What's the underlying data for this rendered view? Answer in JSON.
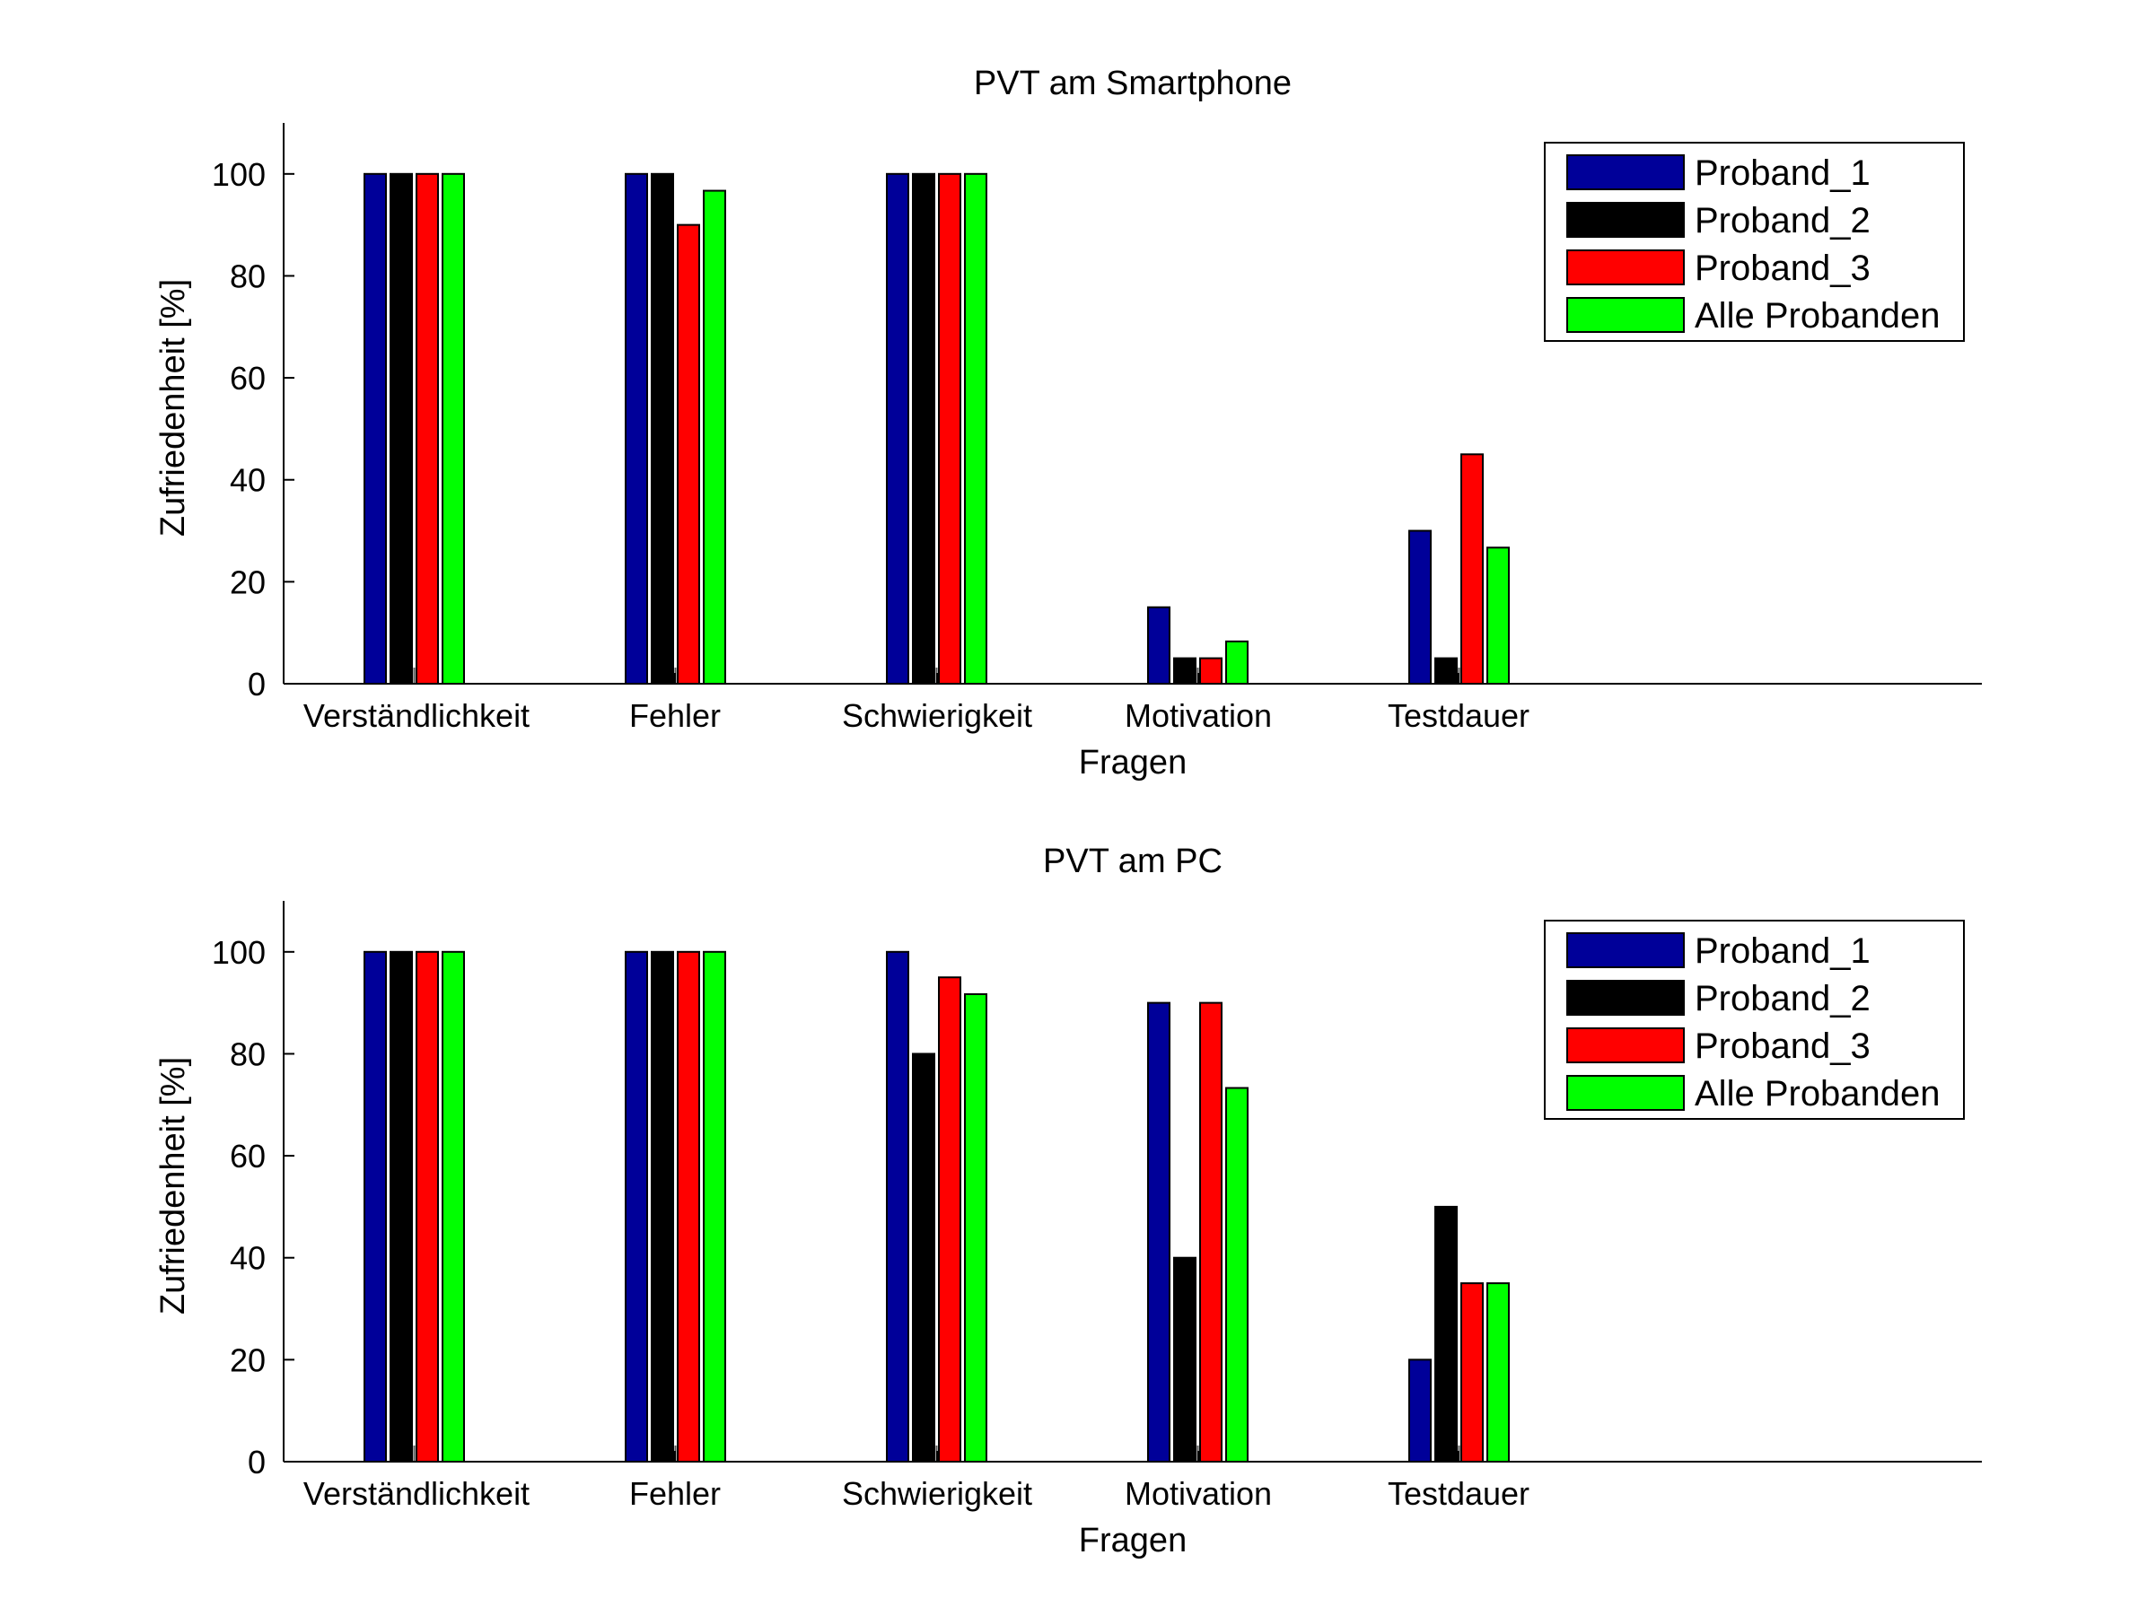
{
  "chart_data": [
    {
      "type": "bar",
      "title": "PVT am Smartphone",
      "xlabel": "Fragen",
      "ylabel": "Zufriedenheit [%]",
      "categories": [
        "Verständlichkeit",
        "Fehler",
        "Schwierigkeit",
        "Motivation",
        "Testdauer"
      ],
      "ylim": [
        0,
        110
      ],
      "yticks": [
        0,
        20,
        40,
        60,
        80,
        100
      ],
      "legend_position": "top-right",
      "grid": false,
      "series": [
        {
          "name": "Proband_1",
          "color": "#000099",
          "values": [
            100,
            100,
            100,
            15,
            30
          ]
        },
        {
          "name": "Proband_2",
          "color": "#000000",
          "values": [
            100,
            100,
            100,
            5,
            5
          ]
        },
        {
          "name": "Proband_3",
          "color": "#ff0000",
          "values": [
            100,
            90,
            100,
            5,
            45
          ]
        },
        {
          "name": "Alle Probanden",
          "color": "#00ff00",
          "values": [
            100,
            96.7,
            100,
            8.3,
            26.7
          ]
        }
      ]
    },
    {
      "type": "bar",
      "title": "PVT am PC",
      "xlabel": "Fragen",
      "ylabel": "Zufriedenheit [%]",
      "categories": [
        "Verständlichkeit",
        "Fehler",
        "Schwierigkeit",
        "Motivation",
        "Testdauer"
      ],
      "ylim": [
        0,
        110
      ],
      "yticks": [
        0,
        20,
        40,
        60,
        80,
        100
      ],
      "legend_position": "top-right",
      "grid": false,
      "series": [
        {
          "name": "Proband_1",
          "color": "#000099",
          "values": [
            100,
            100,
            100,
            90,
            20
          ]
        },
        {
          "name": "Proband_2",
          "color": "#000000",
          "values": [
            100,
            100,
            80,
            40,
            50
          ]
        },
        {
          "name": "Proband_3",
          "color": "#ff0000",
          "values": [
            100,
            100,
            95,
            90,
            35
          ]
        },
        {
          "name": "Alle Probanden",
          "color": "#00ff00",
          "values": [
            100,
            100,
            91.7,
            73.3,
            35
          ]
        }
      ]
    }
  ]
}
